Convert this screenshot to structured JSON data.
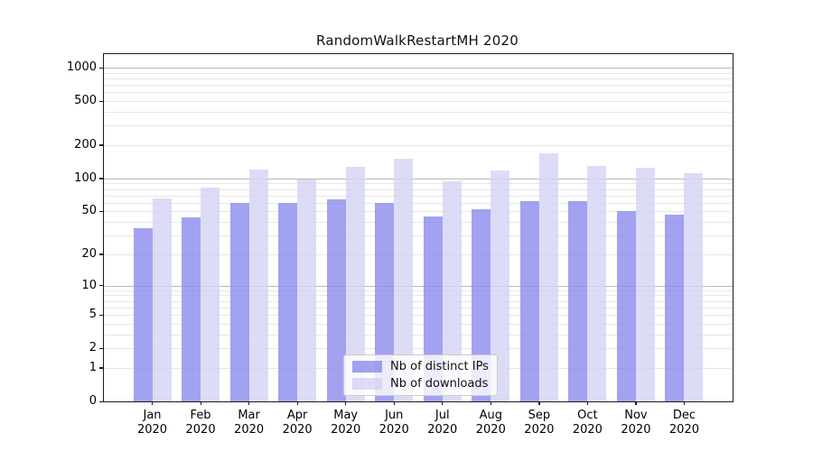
{
  "title": "RandomWalkRestartMH 2020",
  "chart_data": {
    "type": "bar",
    "title": "RandomWalkRestartMH 2020",
    "y_scale": "log1p",
    "grid": true,
    "categories": [
      "Jan",
      "Feb",
      "Mar",
      "Apr",
      "May",
      "Jun",
      "Jul",
      "Aug",
      "Sep",
      "Oct",
      "Nov",
      "Dec"
    ],
    "year": "2020",
    "series": [
      {
        "name": "Nb of distinct IPs",
        "color": "#8b8bee",
        "values": [
          35,
          44,
          60,
          60,
          64,
          60,
          45,
          52,
          62,
          62,
          50,
          47
        ]
      },
      {
        "name": "Nb of downloads",
        "color": "#d3d3f4",
        "values": [
          66,
          82,
          120,
          97,
          128,
          152,
          94,
          119,
          170,
          129,
          125,
          112
        ]
      }
    ],
    "bar_alpha": 0.8,
    "y_ticks": [
      0,
      1,
      2,
      5,
      10,
      20,
      50,
      100,
      200,
      500,
      1000
    ],
    "ylim": [
      0,
      1324
    ],
    "gridlines_major": [
      10,
      100,
      1000
    ],
    "gridlines_minor": [
      1,
      2,
      3,
      4,
      5,
      6,
      7,
      8,
      9,
      20,
      30,
      40,
      50,
      60,
      70,
      80,
      90,
      200,
      300,
      400,
      500,
      600,
      700,
      800,
      900
    ],
    "legend_position": "lower center"
  },
  "colors": {
    "background": "#ffffff",
    "axis_frame": "#1a1a1a",
    "grid_major": "#b8b8b8",
    "grid_minor": "#e7e7e7",
    "bar_ip_displayed": "#a2a2f1",
    "bar_dl_displayed": "#dcdcf6"
  }
}
